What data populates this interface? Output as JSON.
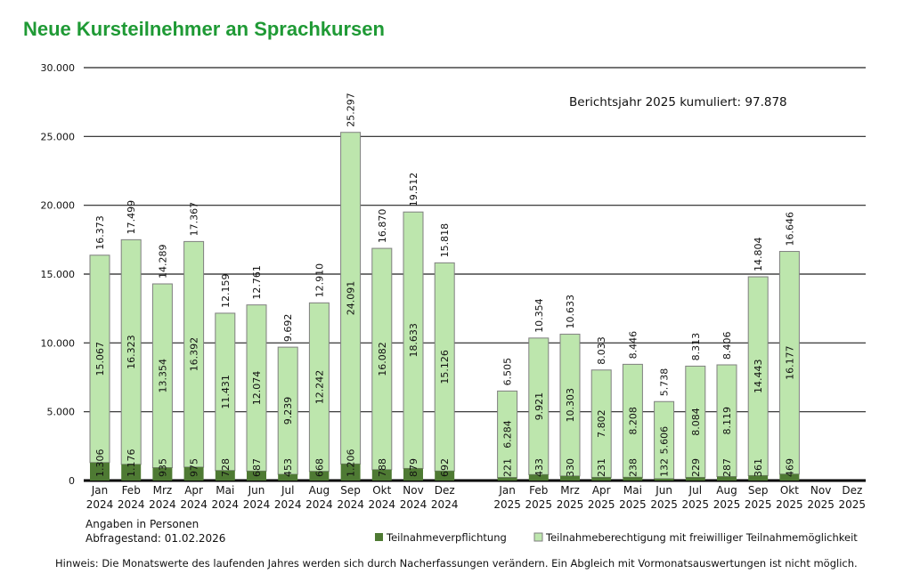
{
  "title": "Neue Kursteilnehmer an Sprachkursen",
  "chart_data": {
    "type": "bar",
    "stacked": true,
    "title": "Neue Kursteilnehmer an Sprachkursen",
    "annotation": "Berichtsjahr 2025 kumuliert: 97.878",
    "ylim": [
      0,
      30000
    ],
    "yticks": [
      "0",
      "5.000",
      "10.000",
      "15.000",
      "20.000",
      "25.000",
      "30.000"
    ],
    "grid": true,
    "legend_position": "bottom-right",
    "colors": {
      "dark": "#4e7a33",
      "light": "#bde6ad",
      "border": "#7f7f7f"
    },
    "groups": [
      {
        "year": "2024",
        "categories": [
          "Jan",
          "Feb",
          "Mrz",
          "Apr",
          "Mai",
          "Jun",
          "Jul",
          "Aug",
          "Sep",
          "Okt",
          "Nov",
          "Dez"
        ],
        "dark": [
          1306,
          1176,
          935,
          975,
          728,
          687,
          453,
          668,
          1206,
          788,
          879,
          692
        ],
        "light": [
          15067,
          16323,
          13354,
          16392,
          11431,
          12074,
          9239,
          12242,
          24091,
          16082,
          18633,
          15126
        ],
        "total": [
          "16.373",
          "17.499",
          "14.289",
          "17.367",
          "12.159",
          "12.761",
          "9.692",
          "12.910",
          "25.297",
          "16.870",
          "19.512",
          "15.818"
        ]
      },
      {
        "year": "2025",
        "categories": [
          "Jan",
          "Feb",
          "Mrz",
          "Apr",
          "Mai",
          "Jun",
          "Jul",
          "Aug",
          "Sep",
          "Okt",
          "Nov",
          "Dez"
        ],
        "dark": [
          221,
          433,
          330,
          231,
          238,
          132,
          229,
          287,
          361,
          469,
          null,
          null
        ],
        "light": [
          6284,
          9921,
          10303,
          7802,
          8208,
          5606,
          8084,
          8119,
          14443,
          16177,
          null,
          null
        ],
        "total": [
          "6.505",
          "10.354",
          "10.633",
          "8.033",
          "8.446",
          "5.738",
          "8.313",
          "8.406",
          "14.804",
          "16.646",
          null,
          null
        ]
      }
    ],
    "series": [
      {
        "name": "Teilnahmeverpflichtung",
        "key": "dark"
      },
      {
        "name": "Teilnahmeberechtigung mit freiwilliger Teilnahmemöglichkeit",
        "key": "light"
      }
    ]
  },
  "notes": {
    "unit": "Angaben in Personen",
    "date": "Abfragestand: 01.02.2026",
    "hint": "Hinweis: Die Monatswerte des laufenden Jahres werden sich durch Nacherfassungen verändern. Ein Abgleich mit Vormonatsauswertungen ist nicht möglich."
  }
}
